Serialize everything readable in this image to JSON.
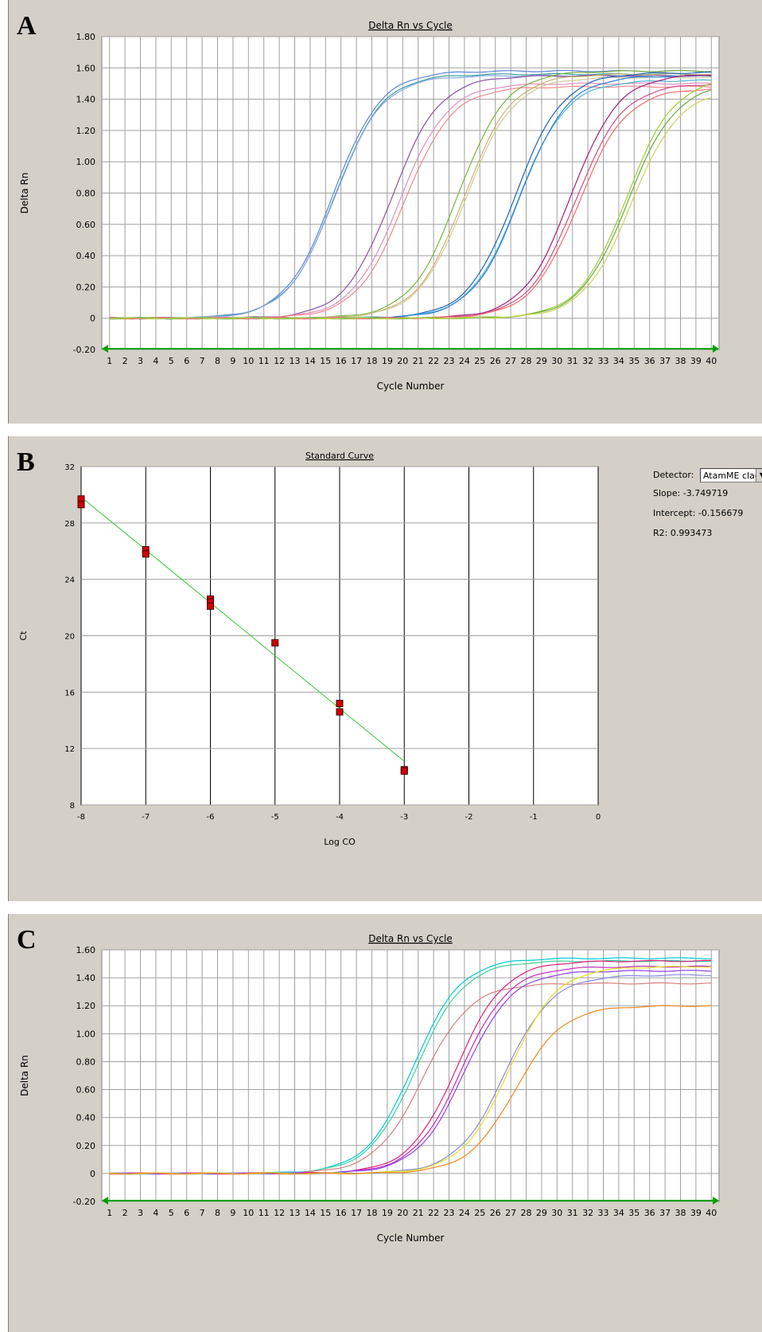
{
  "panels": [
    {
      "id": "a",
      "letter": "A",
      "chart_data": {
        "type": "line",
        "title": "Delta Rn vs Cycle",
        "xlabel": "Cycle Number",
        "ylabel": "Delta Rn",
        "xlim": [
          0.5,
          40.5
        ],
        "ylim": [
          -0.2,
          1.8
        ],
        "yticks": [
          "1.80",
          "1.60",
          "1.40",
          "1.20",
          "1.00",
          "0.80",
          "0.60",
          "0.40",
          "0.20",
          "0",
          "-0.20"
        ],
        "xticks": [
          1,
          2,
          3,
          4,
          5,
          6,
          7,
          8,
          9,
          10,
          11,
          12,
          13,
          14,
          15,
          16,
          17,
          18,
          19,
          20,
          21,
          22,
          23,
          24,
          25,
          26,
          27,
          28,
          29,
          30,
          31,
          32,
          33,
          34,
          35,
          36,
          37,
          38,
          39,
          40
        ],
        "grid": true,
        "threshold_color": "#00a000",
        "series": [
          {
            "ct": 15.5,
            "plateau": 1.58,
            "color": "#5f86d6"
          },
          {
            "ct": 15.6,
            "plateau": 1.56,
            "color": "#3aa0a0"
          },
          {
            "ct": 15.6,
            "plateau": 1.55,
            "color": "#8aa7e0"
          },
          {
            "ct": 19.3,
            "plateau": 1.55,
            "color": "#8c52a8"
          },
          {
            "ct": 19.8,
            "plateau": 1.5,
            "color": "#e08fc2"
          },
          {
            "ct": 20.1,
            "plateau": 1.48,
            "color": "#f08a8a"
          },
          {
            "ct": 23.6,
            "plateau": 1.58,
            "color": "#7cb342"
          },
          {
            "ct": 24.0,
            "plateau": 1.56,
            "color": "#c9b56a"
          },
          {
            "ct": 24.1,
            "plateau": 1.54,
            "color": "#d2c79a"
          },
          {
            "ct": 27.3,
            "plateau": 1.57,
            "color": "#1f63b8"
          },
          {
            "ct": 27.5,
            "plateau": 1.52,
            "color": "#4bb6d9"
          },
          {
            "ct": 27.6,
            "plateau": 1.55,
            "color": "#2b7fd4"
          },
          {
            "ct": 30.9,
            "plateau": 1.56,
            "color": "#a0207a"
          },
          {
            "ct": 31.2,
            "plateau": 1.5,
            "color": "#d64d88"
          },
          {
            "ct": 31.4,
            "plateau": 1.47,
            "color": "#f26b6b"
          },
          {
            "ct": 34.5,
            "plateau": 1.54,
            "color": "#9acd32"
          },
          {
            "ct": 34.6,
            "plateau": 1.5,
            "color": "#6ea93a"
          },
          {
            "ct": 34.8,
            "plateau": 1.46,
            "color": "#c8d65a"
          }
        ]
      }
    },
    {
      "id": "b",
      "letter": "B",
      "chart_data": {
        "type": "scatter",
        "title": "Standard Curve",
        "xlabel": "Log CO",
        "ylabel": "Ct",
        "xlim": [
          -8,
          0
        ],
        "ylim": [
          8,
          32
        ],
        "xticks": [
          "-8",
          "-7",
          "-6",
          "-5",
          "-4",
          "-3",
          "-2",
          "-1",
          "0"
        ],
        "yticks": [
          "32",
          "28",
          "24",
          "20",
          "16",
          "12",
          "8"
        ],
        "points": [
          {
            "x": -8,
            "y": 29.7
          },
          {
            "x": -8,
            "y": 29.3
          },
          {
            "x": -7,
            "y": 26.1
          },
          {
            "x": -7,
            "y": 25.8
          },
          {
            "x": -6,
            "y": 22.6
          },
          {
            "x": -6,
            "y": 22.4
          },
          {
            "x": -6,
            "y": 22.1
          },
          {
            "x": -5,
            "y": 19.5
          },
          {
            "x": -4,
            "y": 15.2
          },
          {
            "x": -4,
            "y": 14.6
          },
          {
            "x": -3,
            "y": 10.5
          },
          {
            "x": -3,
            "y": 10.4
          }
        ],
        "fit_line": {
          "x": [
            -8,
            -3
          ],
          "y": [
            29.84,
            11.09
          ],
          "color": "#33cc33"
        },
        "point_color": "#d00000"
      },
      "side": {
        "detector_label": "Detector:",
        "detector_value": "AtamME clade",
        "slope_label": "Slope:",
        "slope_value": "-3.749719",
        "intercept_label": "Intercept:",
        "intercept_value": "-0.156679",
        "r2_label": "R2:",
        "r2_value": "0.993473"
      }
    },
    {
      "id": "c",
      "letter": "C",
      "chart_data": {
        "type": "line",
        "title": "Delta Rn vs Cycle",
        "xlabel": "Cycle Number",
        "ylabel": "Delta Rn",
        "xlim": [
          0.5,
          40.5
        ],
        "ylim": [
          -0.2,
          1.6
        ],
        "yticks": [
          "1.60",
          "1.40",
          "1.20",
          "1.00",
          "0.80",
          "0.60",
          "0.40",
          "0.20",
          "0",
          "-0.20"
        ],
        "xticks": [
          1,
          2,
          3,
          4,
          5,
          6,
          7,
          8,
          9,
          10,
          11,
          12,
          13,
          14,
          15,
          16,
          17,
          18,
          19,
          20,
          21,
          22,
          23,
          24,
          25,
          26,
          27,
          28,
          29,
          30,
          31,
          32,
          33,
          34,
          35,
          36,
          37,
          38,
          39,
          40
        ],
        "grid": true,
        "threshold_color": "#00a000",
        "series": [
          {
            "ct": 20.7,
            "plateau": 1.54,
            "color": "#00c8d8"
          },
          {
            "ct": 20.9,
            "plateau": 1.52,
            "color": "#3fcfa0"
          },
          {
            "ct": 21.3,
            "plateau": 1.36,
            "color": "#d68080"
          },
          {
            "ct": 23.5,
            "plateau": 1.52,
            "color": "#e0207a"
          },
          {
            "ct": 23.8,
            "plateau": 1.48,
            "color": "#c42ac4"
          },
          {
            "ct": 24.0,
            "plateau": 1.45,
            "color": "#9040e0"
          },
          {
            "ct": 26.6,
            "plateau": 1.42,
            "color": "#8a8ae0"
          },
          {
            "ct": 26.9,
            "plateau": 1.48,
            "color": "#e0e020"
          },
          {
            "ct": 27.3,
            "plateau": 1.2,
            "color": "#f08a1c"
          }
        ]
      }
    }
  ]
}
